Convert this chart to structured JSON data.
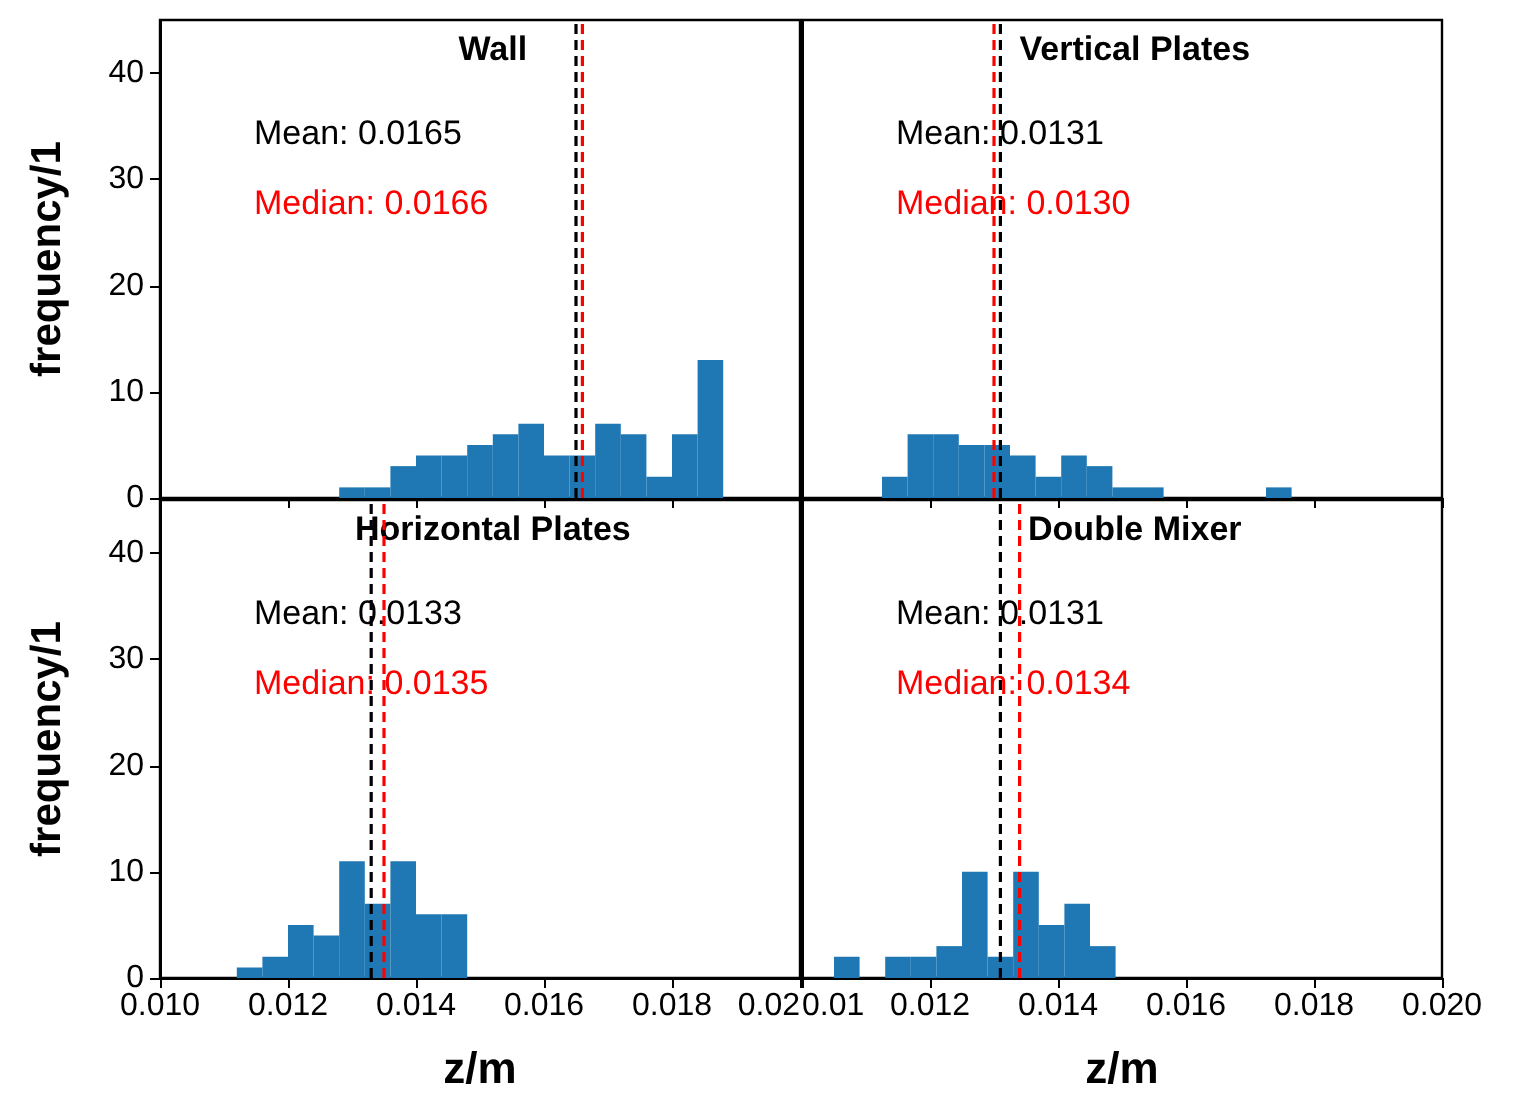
{
  "chart_data": [
    {
      "type": "histogram",
      "title": "Wall",
      "ylabel": "frequency/1",
      "color": "#1f77b4",
      "bins": [
        0.0128,
        0.0132,
        0.0136,
        0.014,
        0.0144,
        0.0148,
        0.0152,
        0.0156,
        0.016,
        0.0164,
        0.0168,
        0.0172,
        0.0176,
        0.018,
        0.0184,
        0.0188
      ],
      "values": [
        1,
        1,
        3,
        4,
        4,
        5,
        6,
        7,
        4,
        4,
        7,
        6,
        2,
        6,
        13
      ],
      "xlim": [
        0.01,
        0.02
      ],
      "xticks": [
        {
          "value": 0.01,
          "label": null
        },
        {
          "value": 0.012,
          "label": null
        },
        {
          "value": 0.014,
          "label": null
        },
        {
          "value": 0.016,
          "label": null
        },
        {
          "value": 0.018,
          "label": null
        },
        {
          "value": 0.02,
          "label": null
        }
      ],
      "ylim": [
        0,
        45
      ],
      "yticks": [
        0,
        10,
        20,
        30,
        40
      ],
      "tick_labels": "y",
      "grid": false,
      "legend": false,
      "ref_lines": [
        {
          "axis": "x",
          "value": 0.0165,
          "label": "Mean: 0.0165",
          "color": "#000000",
          "line_style": "dashed"
        },
        {
          "axis": "x",
          "value": 0.0166,
          "label": "Median: 0.0166",
          "color": "#ff0000",
          "line_style": "dashed"
        }
      ]
    },
    {
      "type": "histogram",
      "title": "Vertical Plates",
      "color": "#1f77b4",
      "bins": [
        0.01125,
        0.01165,
        0.01205,
        0.01245,
        0.01285,
        0.01325,
        0.01365,
        0.01405,
        0.01445,
        0.01485,
        0.01525,
        0.01565,
        0.01605,
        0.01645,
        0.01685,
        0.01725,
        0.01765
      ],
      "values": [
        2,
        6,
        6,
        5,
        5,
        4,
        2,
        4,
        3,
        1,
        1,
        0,
        0,
        0,
        0,
        1
      ],
      "xlim": [
        0.01,
        0.02
      ],
      "xticks": [
        {
          "value": 0.01,
          "label": null
        },
        {
          "value": 0.012,
          "label": null
        },
        {
          "value": 0.014,
          "label": null
        },
        {
          "value": 0.016,
          "label": null
        },
        {
          "value": 0.018,
          "label": null
        },
        {
          "value": 0.02,
          "label": null
        }
      ],
      "ylim": [
        0,
        45
      ],
      "yticks": [
        0,
        10,
        20,
        30,
        40
      ],
      "tick_labels": false,
      "grid": false,
      "legend": false,
      "ref_lines": [
        {
          "axis": "x",
          "value": 0.0131,
          "label": "Mean: 0.0131",
          "color": "#000000",
          "line_style": "dashed"
        },
        {
          "axis": "x",
          "value": 0.013,
          "label": "Median: 0.0130",
          "color": "#ff0000",
          "line_style": "dashed"
        }
      ]
    },
    {
      "type": "histogram",
      "title": "Horizontal Plates",
      "xlabel": "z/m",
      "ylabel": "frequency/1",
      "color": "#1f77b4",
      "bins": [
        0.0112,
        0.0116,
        0.012,
        0.0124,
        0.0128,
        0.0132,
        0.0136,
        0.014,
        0.0144,
        0.0148
      ],
      "values": [
        1,
        2,
        5,
        4,
        11,
        7,
        11,
        6,
        6
      ],
      "xlim": [
        0.01,
        0.02
      ],
      "xticks": [
        {
          "value": 0.01,
          "label": "0.010"
        },
        {
          "value": 0.012,
          "label": "0.012"
        },
        {
          "value": 0.014,
          "label": "0.014"
        },
        {
          "value": 0.016,
          "label": "0.016"
        },
        {
          "value": 0.018,
          "label": "0.018"
        },
        {
          "value": 0.02,
          "label": "0.02"
        }
      ],
      "ylim": [
        0,
        45
      ],
      "yticks": [
        0,
        10,
        20,
        30,
        40
      ],
      "grid": false,
      "legend": false,
      "ref_lines": [
        {
          "axis": "x",
          "value": 0.0133,
          "label": "Mean: 0.0133",
          "color": "#000000",
          "line_style": "dashed"
        },
        {
          "axis": "x",
          "value": 0.0135,
          "label": "Median: 0.0135",
          "color": "#ff0000",
          "line_style": "dashed"
        }
      ]
    },
    {
      "type": "histogram",
      "title": "Double Mixer",
      "xlabel": "z/m",
      "color": "#1f77b4",
      "bins": [
        0.0105,
        0.0109,
        0.0113,
        0.0117,
        0.0121,
        0.0125,
        0.0129,
        0.0133,
        0.0137,
        0.0141,
        0.0145,
        0.0149
      ],
      "values": [
        2,
        0,
        2,
        2,
        3,
        10,
        2,
        10,
        5,
        7,
        3
      ],
      "xlim": [
        0.01,
        0.02
      ],
      "xticks": [
        {
          "value": 0.01,
          "label": "0.01"
        },
        {
          "value": 0.012,
          "label": "0.012"
        },
        {
          "value": 0.014,
          "label": "0.014"
        },
        {
          "value": 0.016,
          "label": "0.016"
        },
        {
          "value": 0.018,
          "label": "0.018"
        },
        {
          "value": 0.02,
          "label": "0.020"
        }
      ],
      "ylim": [
        0,
        45
      ],
      "yticks": [
        0,
        10,
        20,
        30,
        40
      ],
      "tick_labels": "x",
      "grid": false,
      "legend": false,
      "ref_lines": [
        {
          "axis": "x",
          "value": 0.0131,
          "label": "Mean: 0.0131",
          "color": "#000000",
          "line_style": "dashed"
        },
        {
          "axis": "x",
          "value": 0.0134,
          "label": "Median: 0.0134",
          "color": "#ff0000",
          "line_style": "dashed"
        }
      ]
    }
  ]
}
